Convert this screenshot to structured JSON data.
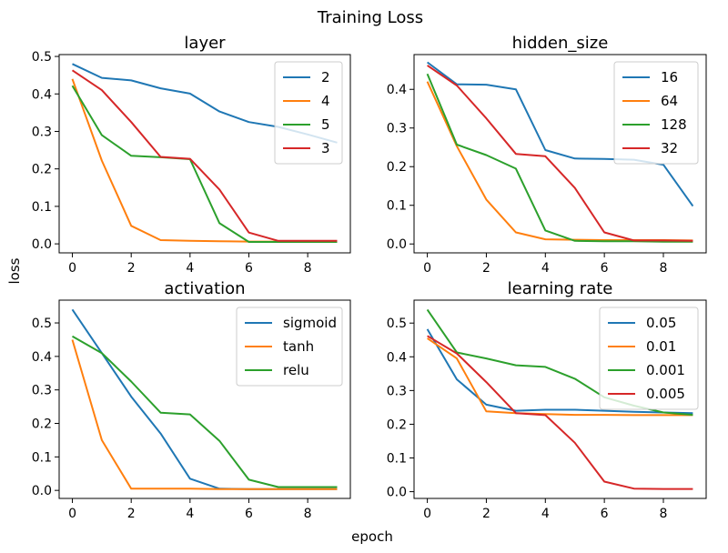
{
  "suptitle": "Training Loss",
  "xlabel": "epoch",
  "ylabel": "loss",
  "colors": {
    "blue": "#1f77b4",
    "orange": "#ff7f0e",
    "green": "#2ca02c",
    "red": "#d62728"
  },
  "chart_data": [
    {
      "type": "line",
      "title": "layer",
      "xlabel": "",
      "ylabel": "",
      "x": [
        0,
        1,
        2,
        3,
        4,
        5,
        6,
        7,
        8,
        9
      ],
      "xticks": [
        0,
        2,
        4,
        6,
        8
      ],
      "yticks": [
        0.0,
        0.1,
        0.2,
        0.3,
        0.4,
        0.5
      ],
      "xlim": [
        -0.45,
        9.45
      ],
      "ylim": [
        -0.024,
        0.505
      ],
      "legend_position": "top-right",
      "series": [
        {
          "name": "2",
          "color": "#1f77b4",
          "values": [
            0.48,
            0.443,
            0.436,
            0.415,
            0.401,
            0.353,
            0.325,
            0.312,
            0.292,
            0.27
          ]
        },
        {
          "name": "4",
          "color": "#ff7f0e",
          "values": [
            0.44,
            0.222,
            0.048,
            0.01,
            0.008,
            0.007,
            0.006,
            0.006,
            0.006,
            0.006
          ]
        },
        {
          "name": "5",
          "color": "#2ca02c",
          "values": [
            0.422,
            0.29,
            0.235,
            0.231,
            0.226,
            0.055,
            0.005,
            0.005,
            0.005,
            0.005
          ]
        },
        {
          "name": "3",
          "color": "#d62728",
          "values": [
            0.463,
            0.41,
            0.325,
            0.232,
            0.227,
            0.145,
            0.03,
            0.008,
            0.008,
            0.008
          ]
        }
      ]
    },
    {
      "type": "line",
      "title": "hidden_size",
      "xlabel": "",
      "ylabel": "",
      "x": [
        0,
        1,
        2,
        3,
        4,
        5,
        6,
        7,
        8,
        9
      ],
      "xticks": [
        0,
        2,
        4,
        6,
        8
      ],
      "yticks": [
        0.0,
        0.1,
        0.2,
        0.3,
        0.4
      ],
      "xlim": [
        -0.45,
        9.45
      ],
      "ylim": [
        -0.023,
        0.49
      ],
      "legend_position": "top-right",
      "series": [
        {
          "name": "16",
          "color": "#1f77b4",
          "values": [
            0.47,
            0.413,
            0.412,
            0.4,
            0.243,
            0.221,
            0.22,
            0.218,
            0.205,
            0.098
          ]
        },
        {
          "name": "64",
          "color": "#ff7f0e",
          "values": [
            0.42,
            0.253,
            0.115,
            0.03,
            0.012,
            0.011,
            0.01,
            0.01,
            0.01,
            0.009
          ]
        },
        {
          "name": "128",
          "color": "#2ca02c",
          "values": [
            0.44,
            0.257,
            0.23,
            0.195,
            0.035,
            0.008,
            0.007,
            0.007,
            0.006,
            0.006
          ]
        },
        {
          "name": "32",
          "color": "#d62728",
          "values": [
            0.462,
            0.41,
            0.325,
            0.233,
            0.227,
            0.145,
            0.03,
            0.009,
            0.009,
            0.008
          ]
        }
      ]
    },
    {
      "type": "line",
      "title": "activation",
      "xlabel": "",
      "ylabel": "",
      "x": [
        0,
        1,
        2,
        3,
        4,
        5,
        6,
        7,
        8,
        9
      ],
      "xticks": [
        0,
        2,
        4,
        6,
        8
      ],
      "yticks": [
        0.0,
        0.1,
        0.2,
        0.3,
        0.4,
        0.5
      ],
      "xlim": [
        -0.45,
        9.45
      ],
      "ylim": [
        -0.024,
        0.568
      ],
      "legend_position": "top-right",
      "series": [
        {
          "name": "sigmoid",
          "color": "#1f77b4",
          "values": [
            0.54,
            0.41,
            0.28,
            0.17,
            0.035,
            0.005,
            0.004,
            0.004,
            0.004,
            0.004
          ]
        },
        {
          "name": "tanh",
          "color": "#ff7f0e",
          "values": [
            0.45,
            0.15,
            0.005,
            0.005,
            0.005,
            0.004,
            0.004,
            0.004,
            0.004,
            0.004
          ]
        },
        {
          "name": "relu",
          "color": "#2ca02c",
          "values": [
            0.46,
            0.41,
            0.325,
            0.232,
            0.227,
            0.148,
            0.032,
            0.01,
            0.01,
            0.01
          ]
        }
      ]
    },
    {
      "type": "line",
      "title": "learning rate",
      "xlabel": "",
      "ylabel": "",
      "x": [
        0,
        1,
        2,
        3,
        4,
        5,
        6,
        7,
        8,
        9
      ],
      "xticks": [
        0,
        2,
        4,
        6,
        8
      ],
      "yticks": [
        0.0,
        0.1,
        0.2,
        0.3,
        0.4,
        0.5
      ],
      "xlim": [
        -0.45,
        9.45
      ],
      "ylim": [
        -0.02,
        0.568
      ],
      "legend_position": "top-right",
      "series": [
        {
          "name": "0.05",
          "color": "#1f77b4",
          "values": [
            0.482,
            0.333,
            0.258,
            0.24,
            0.243,
            0.243,
            0.24,
            0.237,
            0.235,
            0.233
          ]
        },
        {
          "name": "0.01",
          "color": "#ff7f0e",
          "values": [
            0.455,
            0.395,
            0.238,
            0.233,
            0.23,
            0.228,
            0.228,
            0.227,
            0.227,
            0.227
          ]
        },
        {
          "name": "0.001",
          "color": "#2ca02c",
          "values": [
            0.54,
            0.413,
            0.395,
            0.375,
            0.37,
            0.335,
            0.28,
            0.255,
            0.235,
            0.228
          ]
        },
        {
          "name": "0.005",
          "color": "#d62728",
          "values": [
            0.462,
            0.41,
            0.325,
            0.233,
            0.227,
            0.145,
            0.03,
            0.009,
            0.008,
            0.008
          ]
        }
      ]
    }
  ]
}
